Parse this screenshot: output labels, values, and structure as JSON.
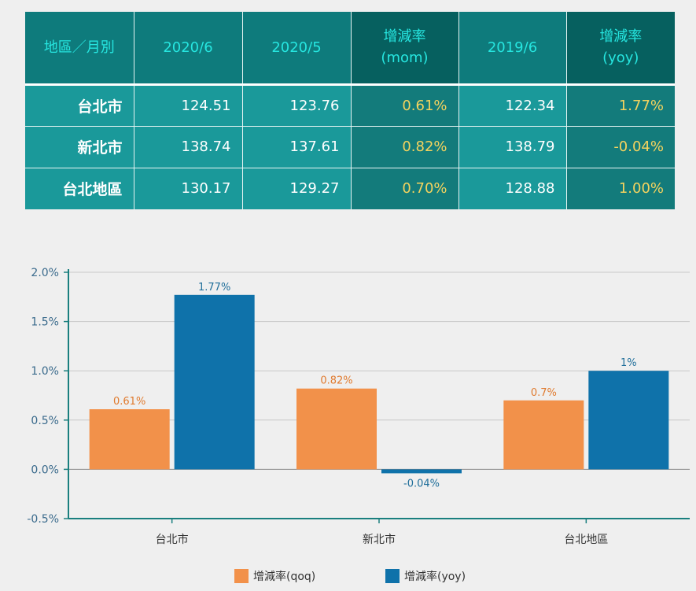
{
  "table": {
    "headers": [
      [
        "地區／月別"
      ],
      [
        "2020/6"
      ],
      [
        "2020/5"
      ],
      [
        "增減率",
        "(mom)"
      ],
      [
        "2019/6"
      ],
      [
        "增減率",
        "(yoy)"
      ]
    ],
    "rows": [
      [
        "台北市",
        "124.51",
        "123.76",
        "0.61%",
        "122.34",
        "1.77%"
      ],
      [
        "新北市",
        "138.74",
        "137.61",
        "0.82%",
        "138.79",
        "-0.04%"
      ],
      [
        "台北地區",
        "130.17",
        "129.27",
        "0.70%",
        "128.88",
        "1.00%"
      ]
    ]
  },
  "chart_data": {
    "type": "bar",
    "categories": [
      "台北市",
      "新北市",
      "台北地區"
    ],
    "series": [
      {
        "name": "增減率(qoq)",
        "values": [
          0.61,
          0.82,
          0.7
        ],
        "labels": [
          "0.61%",
          "0.82%",
          "0.7%"
        ],
        "color": "#f2914a",
        "label_color": "#e07a2e"
      },
      {
        "name": "增減率(yoy)",
        "values": [
          1.77,
          -0.04,
          1.0
        ],
        "labels": [
          "1.77%",
          "-0.04%",
          "1%"
        ],
        "color": "#0f72aa",
        "label_color": "#1f6e9a"
      }
    ],
    "yticks": [
      "-0.5%",
      "0.0%",
      "0.5%",
      "1.0%",
      "1.5%",
      "2.0%"
    ],
    "ylim": [
      -0.5,
      2.0
    ],
    "grid": true,
    "legend_position": "bottom"
  }
}
